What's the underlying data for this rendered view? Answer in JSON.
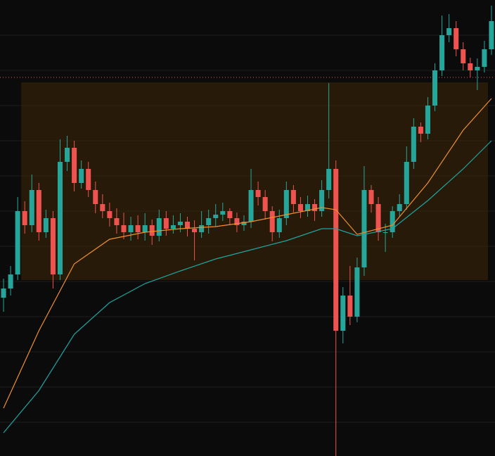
{
  "chart_data": {
    "type": "candlestick",
    "xlim": [
      -0.5,
      69.5
    ],
    "ylim": [
      0,
      648
    ],
    "yticks": [
      48,
      98,
      148,
      198,
      248,
      298,
      348,
      398,
      448,
      498,
      548,
      598
    ],
    "grid": true,
    "up_color": "#26a69a",
    "down_color": "#ef5350",
    "open": [
      225,
      238,
      258,
      348,
      328,
      378,
      318,
      338,
      258,
      418,
      438,
      388,
      408,
      378,
      358,
      348,
      338,
      328,
      318,
      328,
      318,
      328,
      313,
      338,
      323,
      328,
      333,
      323,
      318,
      328,
      338,
      343,
      348,
      338,
      328,
      333,
      378,
      368,
      348,
      318,
      338,
      378,
      358,
      348,
      358,
      348,
      378,
      408,
      178,
      228,
      198,
      268,
      378,
      358,
      318,
      318,
      348,
      358,
      418,
      468,
      458,
      498,
      548,
      598,
      608,
      578,
      558,
      548,
      553,
      578
    ],
    "high": [
      252,
      270,
      368,
      362,
      400,
      388,
      350,
      348,
      450,
      455,
      448,
      420,
      418,
      390,
      372,
      360,
      352,
      346,
      340,
      342,
      345,
      336,
      350,
      348,
      342,
      345,
      340,
      335,
      348,
      350,
      358,
      360,
      352,
      346,
      342,
      408,
      390,
      378,
      355,
      350,
      390,
      385,
      368,
      370,
      365,
      392,
      530,
      420,
      240,
      270,
      282,
      412,
      385,
      368,
      330,
      355,
      372,
      440,
      480,
      474,
      510,
      558,
      626,
      628,
      618,
      588,
      566,
      565,
      590,
      640
    ],
    "low": [
      205,
      228,
      250,
      316,
      318,
      306,
      310,
      238,
      250,
      405,
      376,
      380,
      368,
      345,
      338,
      326,
      316,
      308,
      306,
      308,
      306,
      300,
      305,
      313,
      316,
      318,
      312,
      278,
      310,
      316,
      326,
      334,
      328,
      318,
      320,
      324,
      356,
      336,
      305,
      310,
      328,
      346,
      338,
      340,
      334,
      340,
      366,
      0,
      160,
      186,
      190,
      256,
      346,
      306,
      290,
      310,
      340,
      350,
      408,
      446,
      450,
      490,
      540,
      588,
      568,
      548,
      538,
      520,
      545,
      570
    ],
    "close": [
      238,
      258,
      348,
      328,
      378,
      318,
      338,
      258,
      418,
      438,
      388,
      408,
      378,
      358,
      348,
      338,
      328,
      318,
      328,
      318,
      328,
      313,
      338,
      323,
      328,
      333,
      323,
      318,
      328,
      338,
      343,
      348,
      338,
      328,
      333,
      378,
      368,
      348,
      318,
      338,
      378,
      358,
      348,
      358,
      348,
      378,
      408,
      178,
      228,
      198,
      268,
      378,
      358,
      318,
      318,
      348,
      358,
      418,
      468,
      458,
      498,
      548,
      598,
      608,
      578,
      558,
      548,
      553,
      578,
      618
    ],
    "lines": [
      {
        "color": "#f0902a",
        "x": [
          0,
          5,
          10,
          15,
          20,
          25,
          30,
          35,
          40,
          45,
          47,
          50,
          55,
          60,
          65,
          69
        ],
        "values": [
          68,
          178,
          273,
          308,
          318,
          323,
          326,
          333,
          343,
          353,
          350,
          315,
          328,
          388,
          463,
          508
        ]
      },
      {
        "color": "#1fa5a0",
        "x": [
          0,
          5,
          10,
          15,
          20,
          25,
          30,
          35,
          40,
          45,
          47,
          50,
          55,
          60,
          65,
          69
        ],
        "values": [
          33,
          93,
          173,
          218,
          245,
          263,
          280,
          293,
          306,
          323,
          323,
          313,
          323,
          363,
          408,
          448
        ]
      }
    ],
    "zone": {
      "start": 3,
      "end": 68,
      "top": 531,
      "bottom": 250,
      "color": "#3a2407"
    },
    "price_line": {
      "value": 538,
      "color": "#ef5350"
    }
  }
}
